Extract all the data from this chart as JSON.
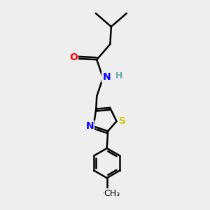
{
  "background_color": "#eeeeee",
  "line_color": "#000000",
  "bond_width": 1.8,
  "figsize": [
    3.0,
    3.0
  ],
  "dpi": 100,
  "atom_colors": {
    "O": "#ff0000",
    "N": "#0000ff",
    "S": "#cccc00",
    "H": "#66aaaa",
    "C": "#000000"
  },
  "bg": "#eeeeee"
}
